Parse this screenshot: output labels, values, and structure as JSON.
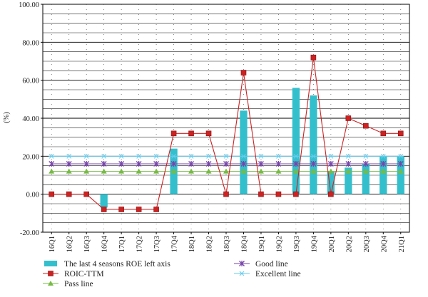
{
  "chart_data": {
    "type": "bar",
    "ylabel": "(%)",
    "xlabel": "",
    "ylim": [
      -20,
      100
    ],
    "y_ticks": [
      "100.00",
      "80.00",
      "60.00",
      "40.00",
      "20.00",
      "0.00",
      "-20.00"
    ],
    "categories": [
      "16Q1",
      "16Q2",
      "16Q3",
      "16Q4",
      "17Q1",
      "17Q2",
      "17Q3",
      "17Q4",
      "18Q1",
      "18Q2",
      "18Q3",
      "18Q4",
      "19Q1",
      "19Q2",
      "19Q3",
      "19Q4",
      "20Q1",
      "20Q2",
      "20Q3",
      "20Q4",
      "21Q1"
    ],
    "grid": true,
    "legend_position": "bottom",
    "series": [
      {
        "name": "The last 4 seasons ROE left axis",
        "kind": "bar",
        "color": "#33bfcc",
        "values": [
          null,
          null,
          null,
          -7,
          null,
          null,
          null,
          24,
          null,
          null,
          null,
          44,
          null,
          null,
          56,
          52,
          12,
          14,
          16,
          20,
          20
        ]
      },
      {
        "name": "ROIC-TTM",
        "kind": "line",
        "color": "#cc2222",
        "marker": "square",
        "values": [
          0,
          0,
          0,
          -8,
          -8,
          -8,
          -8,
          32,
          32,
          32,
          0,
          64,
          0,
          0,
          0,
          72,
          0,
          40,
          36,
          32,
          32
        ]
      },
      {
        "name": "Pass line",
        "kind": "line",
        "color": "#77bb44",
        "marker": "triangle",
        "values": [
          12,
          12,
          12,
          12,
          12,
          12,
          12,
          12,
          12,
          12,
          12,
          12,
          12,
          12,
          12,
          12,
          12,
          12,
          12,
          12,
          12
        ]
      },
      {
        "name": "Good line",
        "kind": "line",
        "color": "#7744aa",
        "marker": "star",
        "values": [
          16,
          16,
          16,
          16,
          16,
          16,
          16,
          16,
          16,
          16,
          16,
          16,
          16,
          16,
          16,
          16,
          16,
          16,
          16,
          16,
          16
        ]
      },
      {
        "name": "Excellent line",
        "kind": "line",
        "color": "#66ccee",
        "marker": "asterisk",
        "values": [
          20,
          20,
          20,
          20,
          20,
          20,
          20,
          20,
          20,
          20,
          20,
          20,
          20,
          20,
          20,
          20,
          20,
          20,
          20,
          20,
          20
        ]
      }
    ]
  }
}
